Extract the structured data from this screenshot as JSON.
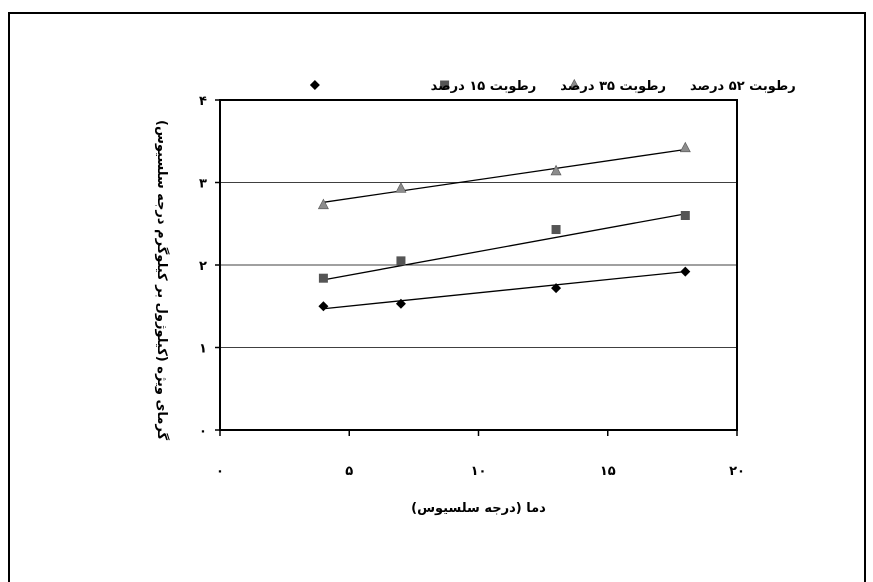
{
  "chart_data": {
    "type": "scatter",
    "title": "",
    "xlabel": "دما (درجه سلسیوس)",
    "ylabel": "گرمای ویژه (کیلوژول بر کیلوگرم درجه سلسیوس)",
    "xlim": [
      0,
      20
    ],
    "ylim": [
      0,
      4
    ],
    "x_ticks": [
      0,
      5,
      10,
      15,
      20
    ],
    "x_tick_labels": [
      "۰",
      "۵",
      "۱۰",
      "۱۵",
      "۲۰"
    ],
    "y_ticks": [
      0,
      1,
      2,
      3,
      4
    ],
    "y_tick_labels": [
      "۰",
      "۱",
      "۲",
      "۳",
      "۴"
    ],
    "grid": "horizontal",
    "legend_position": "top",
    "series": [
      {
        "name": "رطوبت ۱۵ درصد",
        "marker": "diamond",
        "color": "#000000",
        "x": [
          4,
          7,
          13,
          18
        ],
        "y": [
          1.5,
          1.53,
          1.72,
          1.92
        ],
        "trend": [
          1.47,
          1.92
        ]
      },
      {
        "name": "رطوبت ۳۵ درصد",
        "marker": "square",
        "color": "#555555",
        "x": [
          4,
          7,
          13,
          18
        ],
        "y": [
          1.84,
          2.05,
          2.43,
          2.6
        ],
        "trend": [
          1.82,
          2.62
        ]
      },
      {
        "name": "رطوبت ۵۲ درصد",
        "marker": "triangle",
        "color": "#8c8c8c",
        "x": [
          4,
          7,
          13,
          18
        ],
        "y": [
          2.73,
          2.93,
          3.14,
          3.42
        ],
        "trend": [
          2.76,
          3.4
        ]
      }
    ]
  }
}
